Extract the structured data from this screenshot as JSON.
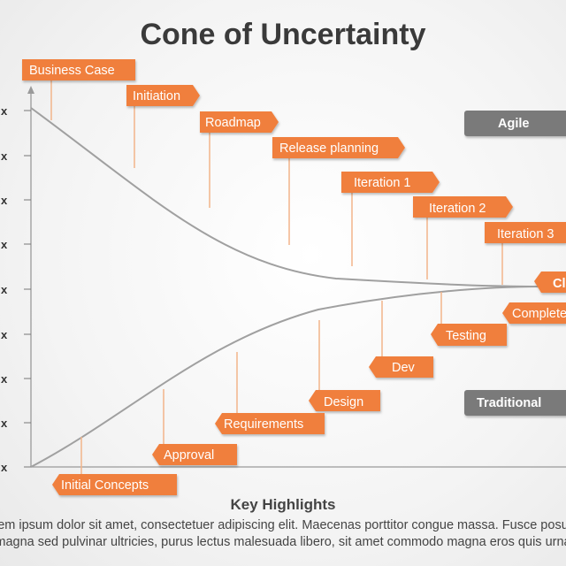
{
  "title": "Cone of Uncertainty",
  "y_axis_labels": [
    "x",
    "x",
    "x",
    "x",
    "x",
    "x",
    "x",
    "x",
    "x"
  ],
  "categories": {
    "agile": "Agile",
    "traditional": "Traditional"
  },
  "upper_stages": [
    "Business Case",
    "Initiation",
    "Roadmap",
    "Release planning",
    "Iteration 1",
    "Iteration 2",
    "Iteration 3"
  ],
  "lower_stages": [
    "Initial Concepts",
    "Approval",
    "Requirements",
    "Design",
    "Dev",
    "Testing",
    "Complete"
  ],
  "end_label": "Cl",
  "key_highlights": {
    "title": "Key Highlights",
    "line1": "Lorem ipsum dolor sit amet, consectetuer adipiscing elit. Maecenas porttitor congue massa. Fusce posuere,",
    "line2": "magna sed pulvinar ultricies, purus lectus malesuada libero, sit amet commodo magna eros quis urna."
  },
  "colors": {
    "accent": "#f07f3c",
    "category_box": "#7a7a7a",
    "curve": "#a0a0a0",
    "connector": "#f2b48a"
  }
}
